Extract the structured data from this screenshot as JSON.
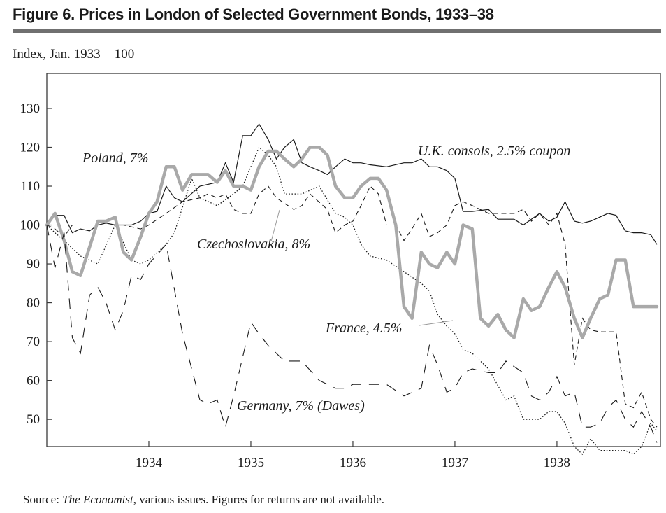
{
  "figure": {
    "title": "Figure 6.  Prices in London of Selected Government Bonds, 1933–38",
    "subtitle": "Index, Jan. 1933 = 100",
    "source_prefix": "Source: ",
    "source_italic": "The Economist",
    "source_suffix": ", various issues. Figures for returns are not available."
  },
  "chart_data": {
    "type": "line",
    "title": "Prices in London of Selected Government Bonds, 1933–38",
    "xlabel": "",
    "ylabel": "Index, Jan. 1933 = 100",
    "xlim": [
      1933.0,
      1938.98
    ],
    "ylim": [
      43,
      139
    ],
    "yticks": [
      50,
      60,
      70,
      80,
      90,
      100,
      110,
      120,
      130
    ],
    "xticks": [
      1934,
      1935,
      1936,
      1937,
      1938
    ],
    "grid": false,
    "series": [
      {
        "name": "U.K. consols, 2.5% coupon",
        "style": "solid-thin",
        "label_pos": "top-right",
        "x": [
          1933.0,
          1933.08,
          1933.17,
          1933.25,
          1933.33,
          1933.42,
          1933.5,
          1933.58,
          1933.67,
          1933.75,
          1933.83,
          1933.92,
          1934.0,
          1934.08,
          1934.17,
          1934.25,
          1934.33,
          1934.5,
          1934.67,
          1934.75,
          1934.83,
          1934.92,
          1935.0,
          1935.08,
          1935.17,
          1935.25,
          1935.33,
          1935.42,
          1935.5,
          1935.58,
          1935.67,
          1935.75,
          1935.83,
          1935.92,
          1936.0,
          1936.08,
          1936.17,
          1936.33,
          1936.5,
          1936.58,
          1936.67,
          1936.75,
          1936.83,
          1936.92,
          1937.0,
          1937.08,
          1937.17,
          1937.33,
          1937.42,
          1937.58,
          1937.67,
          1937.75,
          1937.83,
          1937.92,
          1938.0,
          1938.08,
          1938.17,
          1938.25,
          1938.33,
          1938.5,
          1938.58,
          1938.67,
          1938.75,
          1938.83,
          1938.92,
          1938.98
        ],
        "values": [
          100,
          102.5,
          102.5,
          98,
          99,
          98.5,
          100,
          100.5,
          100,
          100,
          100,
          101,
          103,
          103.5,
          110,
          107,
          106,
          110,
          111,
          116,
          111,
          123,
          123,
          126,
          122,
          117,
          120,
          122,
          116,
          115,
          114,
          113,
          115,
          117,
          116,
          116,
          115.5,
          115,
          116,
          116,
          117,
          115,
          115,
          114,
          112,
          103.5,
          103.5,
          104,
          101.5,
          101.5,
          100,
          101.5,
          103,
          101,
          102,
          106,
          101,
          100.5,
          101,
          103,
          102.5,
          98.5,
          98,
          98,
          97.5,
          95
        ]
      },
      {
        "name": "Czechoslovakia, 8%",
        "style": "dashed-short",
        "label_pos": "center",
        "x": [
          1933.0,
          1933.08,
          1933.17,
          1933.25,
          1933.42,
          1933.58,
          1933.75,
          1933.92,
          1934.0,
          1934.17,
          1934.33,
          1934.5,
          1934.58,
          1934.67,
          1934.75,
          1934.83,
          1934.92,
          1935.0,
          1935.08,
          1935.17,
          1935.25,
          1935.42,
          1935.5,
          1935.58,
          1935.75,
          1935.83,
          1935.92,
          1936.0,
          1936.08,
          1936.17,
          1936.25,
          1936.33,
          1936.42,
          1936.5,
          1936.58,
          1936.67,
          1936.75,
          1936.83,
          1936.92,
          1937.0,
          1937.08,
          1937.17,
          1937.33,
          1937.5,
          1937.58,
          1937.67,
          1937.75,
          1937.83,
          1937.92,
          1938.0,
          1938.08,
          1938.17,
          1938.25,
          1938.33,
          1938.42,
          1938.5,
          1938.58,
          1938.67,
          1938.75,
          1938.83,
          1938.92,
          1938.98
        ],
        "values": [
          100,
          99,
          97,
          100,
          100,
          100,
          100,
          99,
          100,
          103,
          106,
          107,
          108,
          107,
          108,
          104,
          103,
          103,
          108,
          110,
          107,
          104,
          105,
          108,
          104,
          98,
          100,
          101,
          105,
          110,
          108,
          100,
          100,
          96,
          99,
          103,
          97,
          98,
          100,
          105,
          106,
          105,
          103,
          103,
          103,
          104,
          101,
          103,
          100,
          103,
          95,
          64,
          76,
          73,
          72.5,
          72.5,
          72.5,
          54,
          53,
          57,
          50,
          48
        ]
      },
      {
        "name": "France, 4.5%",
        "style": "dotted",
        "label_pos": "bottom-center",
        "x": [
          1933.0,
          1933.08,
          1933.17,
          1933.33,
          1933.5,
          1933.67,
          1933.83,
          1933.92,
          1934.0,
          1934.17,
          1934.25,
          1934.42,
          1934.5,
          1934.67,
          1934.83,
          1934.92,
          1935.0,
          1935.08,
          1935.17,
          1935.25,
          1935.33,
          1935.5,
          1935.67,
          1935.83,
          1935.92,
          1936.0,
          1936.08,
          1936.17,
          1936.33,
          1936.5,
          1936.67,
          1936.75,
          1936.83,
          1936.92,
          1937.0,
          1937.08,
          1937.17,
          1937.33,
          1937.5,
          1937.58,
          1937.67,
          1937.75,
          1937.83,
          1937.92,
          1938.0,
          1938.08,
          1938.17,
          1938.25,
          1938.33,
          1938.42,
          1938.5,
          1938.67,
          1938.75,
          1938.83,
          1938.92,
          1938.98
        ],
        "values": [
          100,
          98,
          96,
          92,
          90,
          100,
          91,
          90,
          91,
          95,
          98,
          112,
          107,
          105,
          108,
          110,
          115,
          120,
          118,
          115,
          108,
          108,
          110,
          103,
          102,
          100,
          95,
          92,
          91,
          88,
          85,
          83,
          77,
          74,
          72,
          68,
          67,
          63,
          55,
          56,
          50,
          50,
          50,
          52,
          52,
          49,
          43,
          41,
          45,
          42,
          42,
          42,
          41,
          43,
          49,
          47
        ]
      },
      {
        "name": "Poland, 7%",
        "style": "thick-gray",
        "label_pos": "top-left",
        "x": [
          1933.0,
          1933.08,
          1933.17,
          1933.25,
          1933.33,
          1933.5,
          1933.58,
          1933.67,
          1933.75,
          1933.83,
          1933.92,
          1934.0,
          1934.08,
          1934.17,
          1934.25,
          1934.33,
          1934.42,
          1934.5,
          1934.58,
          1934.67,
          1934.75,
          1934.83,
          1934.92,
          1935.0,
          1935.08,
          1935.17,
          1935.25,
          1935.33,
          1935.42,
          1935.5,
          1935.58,
          1935.67,
          1935.75,
          1935.83,
          1935.92,
          1936.0,
          1936.08,
          1936.17,
          1936.25,
          1936.33,
          1936.42,
          1936.5,
          1936.58,
          1936.67,
          1936.75,
          1936.83,
          1936.92,
          1937.0,
          1937.08,
          1937.17,
          1937.25,
          1937.33,
          1937.42,
          1937.5,
          1937.58,
          1937.67,
          1937.75,
          1937.83,
          1937.92,
          1938.0,
          1938.08,
          1938.17,
          1938.25,
          1938.33,
          1938.42,
          1938.5,
          1938.58,
          1938.67,
          1938.75,
          1938.83,
          1938.92,
          1938.98
        ],
        "values": [
          100,
          103,
          96,
          88,
          87,
          101,
          101,
          102,
          93,
          91,
          97,
          103,
          106,
          115,
          115,
          109,
          113,
          113,
          113,
          111,
          114,
          110,
          110,
          109,
          115,
          119,
          119,
          117,
          115,
          117,
          120,
          120,
          118,
          110,
          107,
          107,
          110,
          112,
          112,
          109,
          100,
          79,
          76,
          93,
          90,
          89,
          93,
          90,
          100,
          99,
          76,
          74,
          77,
          73,
          71,
          81,
          78,
          79,
          84,
          88,
          84,
          76,
          71,
          76,
          81,
          82,
          91,
          91,
          79,
          79,
          79,
          79
        ]
      },
      {
        "name": "Germany, 7% (Dawes)",
        "style": "dashed-long",
        "label_pos": "bottom-left",
        "x": [
          1933.0,
          1933.08,
          1933.17,
          1933.25,
          1933.33,
          1933.42,
          1933.5,
          1933.58,
          1933.67,
          1933.75,
          1933.83,
          1933.92,
          1934.0,
          1934.17,
          1934.33,
          1934.5,
          1934.58,
          1934.67,
          1934.75,
          1934.83,
          1935.0,
          1935.08,
          1935.17,
          1935.33,
          1935.5,
          1935.67,
          1935.83,
          1935.92,
          1936.0,
          1936.17,
          1936.33,
          1936.5,
          1936.67,
          1936.75,
          1936.83,
          1936.92,
          1937.0,
          1937.08,
          1937.17,
          1937.33,
          1937.42,
          1937.5,
          1937.67,
          1937.75,
          1937.83,
          1937.92,
          1938.0,
          1938.08,
          1938.17,
          1938.25,
          1938.33,
          1938.42,
          1938.5,
          1938.58,
          1938.67,
          1938.75,
          1938.83,
          1938.92,
          1938.98
        ],
        "values": [
          100,
          89,
          98,
          71,
          67,
          82,
          84,
          80,
          73,
          78,
          87,
          86,
          90,
          95,
          72,
          55,
          54,
          55,
          48,
          56,
          75,
          72,
          69,
          65,
          65,
          60,
          58,
          58,
          59,
          59,
          59,
          56,
          58,
          69,
          64,
          57,
          58,
          62,
          63,
          62,
          62,
          65,
          62,
          56,
          55,
          57,
          61,
          56,
          57,
          48,
          48,
          49,
          53,
          55,
          50,
          48,
          52,
          48,
          44
        ]
      }
    ],
    "annotations": [
      "U.K. consols, 2.5% coupon",
      "Poland, 7%",
      "Czechoslovakia, 8%",
      "France, 4.5%",
      "Germany, 7% (Dawes)"
    ]
  }
}
